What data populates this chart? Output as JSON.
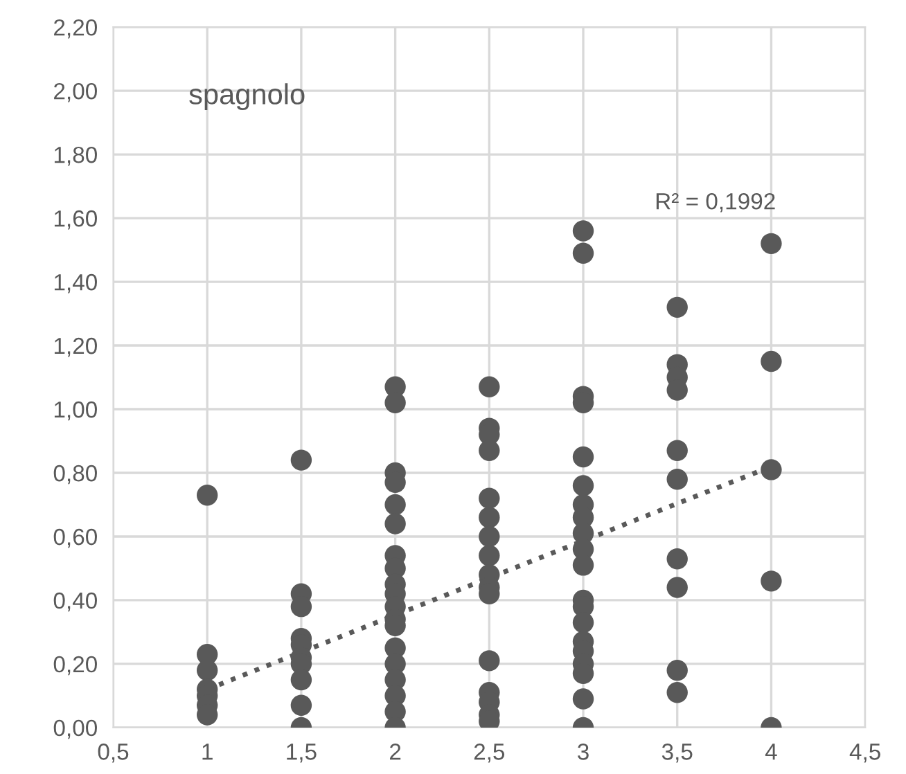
{
  "chart_data": {
    "type": "scatter",
    "grid": true,
    "xlim": [
      0.5,
      4.5
    ],
    "ylim": [
      0,
      2.2
    ],
    "xticks": [
      {
        "value": 0.5,
        "label": "0,5"
      },
      1,
      {
        "value": 1.5,
        "label": "1,5"
      },
      2,
      {
        "value": 2.5,
        "label": "2,5"
      },
      3,
      {
        "value": 3.5,
        "label": "3,5"
      },
      4,
      {
        "value": 4.5,
        "label": "4,5"
      }
    ],
    "yticks": [
      {
        "value": 0,
        "label": "0,00"
      },
      {
        "value": 0.2,
        "label": "0,20"
      },
      {
        "value": 0.4,
        "label": "0,40"
      },
      {
        "value": 0.6,
        "label": "0,60"
      },
      {
        "value": 0.8,
        "label": "0,80"
      },
      {
        "value": 1.0,
        "label": "1,00"
      },
      {
        "value": 1.2,
        "label": "1,20"
      },
      {
        "value": 1.4,
        "label": "1,40"
      },
      {
        "value": 1.6,
        "label": "1,60"
      },
      {
        "value": 1.8,
        "label": "1,80"
      },
      {
        "value": 2.0,
        "label": "2,00"
      },
      {
        "value": 2.2,
        "label": "2,20"
      }
    ],
    "annotations": [
      "spagnolo",
      "R² = 0,1992"
    ],
    "series": [
      {
        "color": "#595959",
        "marker": "circle",
        "x": [
          1,
          1,
          1,
          1,
          1,
          1,
          1,
          1.5,
          1.5,
          1.5,
          1.5,
          1.5,
          1.5,
          1.5,
          1.5,
          1.5,
          1.5,
          2,
          2,
          2,
          2,
          2,
          2,
          2,
          2,
          2,
          2,
          2,
          2,
          2,
          2,
          2,
          2,
          2,
          2,
          2,
          2.5,
          2.5,
          2.5,
          2.5,
          2.5,
          2.5,
          2.5,
          2.5,
          2.5,
          2.5,
          2.5,
          2.5,
          2.5,
          2.5,
          2.5,
          2.5,
          3,
          3,
          3,
          3,
          3,
          3,
          3,
          3,
          3,
          3,
          3,
          3,
          3,
          3,
          3,
          3,
          3,
          3,
          3,
          3,
          3.5,
          3.5,
          3.5,
          3.5,
          3.5,
          3.5,
          3.5,
          3.5,
          3.5,
          3.5,
          4,
          4,
          4,
          4,
          4
        ],
        "values": [
          0.73,
          0.23,
          0.18,
          0.12,
          0.1,
          0.07,
          0.04,
          0.84,
          0.42,
          0.38,
          0.28,
          0.26,
          0.22,
          0.2,
          0.15,
          0.07,
          0.0,
          1.07,
          1.02,
          0.8,
          0.77,
          0.7,
          0.64,
          0.54,
          0.5,
          0.45,
          0.42,
          0.38,
          0.34,
          0.32,
          0.25,
          0.2,
          0.15,
          0.1,
          0.05,
          0.0,
          1.07,
          0.94,
          0.92,
          0.87,
          0.72,
          0.66,
          0.6,
          0.54,
          0.48,
          0.44,
          0.42,
          0.21,
          0.11,
          0.08,
          0.04,
          0.02,
          1.56,
          1.49,
          1.04,
          1.02,
          0.85,
          0.76,
          0.7,
          0.66,
          0.61,
          0.56,
          0.51,
          0.4,
          0.38,
          0.33,
          0.27,
          0.24,
          0.2,
          0.17,
          0.09,
          0.0,
          1.32,
          1.14,
          1.1,
          1.06,
          0.87,
          0.78,
          0.53,
          0.44,
          0.18,
          0.11,
          1.52,
          1.15,
          0.81,
          0.46,
          0.0
        ]
      },
      {
        "type": "line",
        "color": "#595959",
        "line_style": "dotted",
        "x": [
          1,
          4
        ],
        "values": [
          0.12,
          0.82
        ]
      }
    ]
  }
}
